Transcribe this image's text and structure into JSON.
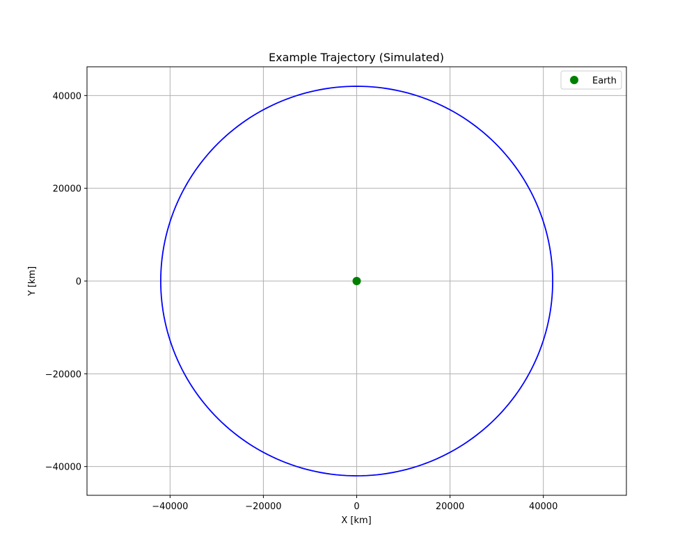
{
  "chart_data": {
    "type": "line",
    "title": "Example Trajectory (Simulated)",
    "xlabel": "X [km]",
    "ylabel": "Y [km]",
    "xlim": [
      -57800,
      57800
    ],
    "ylim": [
      -46200,
      46200
    ],
    "x_ticks": [
      -40000,
      -20000,
      0,
      20000,
      40000
    ],
    "x_tick_labels": [
      "−40000",
      "−20000",
      "0",
      "20000",
      "40000"
    ],
    "y_ticks": [
      -40000,
      -20000,
      0,
      20000,
      40000
    ],
    "y_tick_labels": [
      "−40000",
      "−20000",
      "0",
      "20000",
      "40000"
    ],
    "grid": true,
    "legend_position": "top-right",
    "series": [
      {
        "kind": "trajectory",
        "shape": "circular orbit",
        "center": [
          0,
          0
        ],
        "radius": 42000,
        "color": "#0000ff"
      },
      {
        "name": "Earth",
        "kind": "point",
        "x": 0,
        "y": 0,
        "color": "#008000"
      }
    ]
  }
}
